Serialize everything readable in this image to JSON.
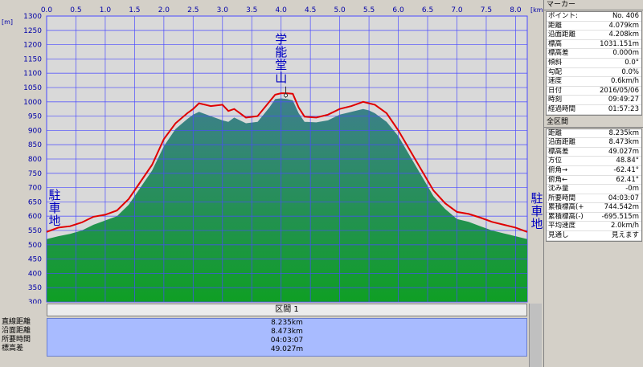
{
  "chart_data": {
    "type": "area",
    "xlabel": "km",
    "ylabel": "m",
    "xlim": [
      0,
      8.2
    ],
    "ylim": [
      300,
      1300
    ],
    "x_ticks": [
      "0.0",
      "0.5",
      "1.0",
      "1.5",
      "2.0",
      "2.5",
      "3.0",
      "3.5",
      "4.0",
      "4.5",
      "5.0",
      "5.5",
      "6.0",
      "6.5",
      "7.0",
      "7.5",
      "8.0"
    ],
    "y_ticks": [
      "1300",
      "1250",
      "1200",
      "1150",
      "1100",
      "1050",
      "1000",
      "950",
      "900",
      "850",
      "800",
      "750",
      "700",
      "650",
      "600",
      "550",
      "500",
      "450",
      "400",
      "350",
      "300"
    ],
    "grid": true,
    "annotations": {
      "start": "駐車地",
      "end": "駐車地",
      "peak": "学能堂山"
    },
    "series": [
      {
        "role": "route-elevation-line",
        "color": "#e00000",
        "x": [
          0,
          0.2,
          0.4,
          0.6,
          0.8,
          1.0,
          1.2,
          1.4,
          1.6,
          1.8,
          2.0,
          2.2,
          2.4,
          2.5,
          2.6,
          2.8,
          3.0,
          3.1,
          3.2,
          3.4,
          3.6,
          3.8,
          3.9,
          4.0,
          4.1,
          4.2,
          4.3,
          4.4,
          4.6,
          4.8,
          5.0,
          5.2,
          5.4,
          5.5,
          5.6,
          5.8,
          6.0,
          6.2,
          6.4,
          6.6,
          6.8,
          7.0,
          7.2,
          7.4,
          7.6,
          7.8,
          8.0,
          8.2
        ],
        "values": [
          545,
          560,
          565,
          578,
          598,
          605,
          620,
          660,
          720,
          780,
          870,
          925,
          960,
          975,
          995,
          985,
          990,
          968,
          975,
          945,
          950,
          1000,
          1025,
          1030,
          1030,
          1028,
          980,
          948,
          945,
          955,
          975,
          985,
          1000,
          995,
          990,
          960,
          900,
          830,
          760,
          690,
          645,
          615,
          608,
          595,
          580,
          570,
          560,
          545
        ]
      },
      {
        "role": "terrain-fill",
        "fill_top": "#3e7f8e",
        "fill_bottom": "#0f9f24",
        "x": [
          0,
          0.2,
          0.4,
          0.6,
          0.8,
          1.0,
          1.2,
          1.4,
          1.6,
          1.8,
          2.0,
          2.2,
          2.4,
          2.5,
          2.6,
          2.8,
          3.0,
          3.1,
          3.2,
          3.4,
          3.6,
          3.8,
          3.9,
          4.0,
          4.1,
          4.2,
          4.3,
          4.4,
          4.6,
          4.8,
          5.0,
          5.2,
          5.4,
          5.5,
          5.6,
          5.8,
          6.0,
          6.2,
          6.4,
          6.6,
          6.8,
          7.0,
          7.2,
          7.4,
          7.6,
          7.8,
          8.0,
          8.2
        ],
        "values": [
          520,
          530,
          538,
          550,
          570,
          585,
          600,
          640,
          700,
          760,
          845,
          905,
          940,
          955,
          965,
          950,
          935,
          930,
          945,
          925,
          930,
          980,
          1010,
          1012,
          1010,
          1005,
          960,
          930,
          928,
          935,
          955,
          965,
          975,
          970,
          960,
          930,
          880,
          810,
          740,
          670,
          625,
          590,
          580,
          565,
          550,
          540,
          530,
          520
        ]
      }
    ],
    "bottom_stats": {
      "section_header": "区間 1",
      "rows": [
        {
          "label": "直線距離",
          "value": "8.235km"
        },
        {
          "label": "沿面距離",
          "value": "8.473km"
        },
        {
          "label": "所要時間",
          "value": "04:03:07"
        },
        {
          "label": "標高差",
          "value": "49.027m"
        }
      ]
    }
  },
  "marker_panel": {
    "title": "マーカー",
    "rows": [
      {
        "k": "ポイント:",
        "v": "No. 406"
      },
      {
        "k": "距離",
        "v": "4.079km"
      },
      {
        "k": "沿面距離",
        "v": "4.208km"
      },
      {
        "k": "標高",
        "v": "1031.151m"
      },
      {
        "k": "標高差",
        "v": "0.000m"
      },
      {
        "k": "傾斜",
        "v": "0.0°"
      },
      {
        "k": "勾配",
        "v": "0.0%"
      },
      {
        "k": "速度",
        "v": "0.6km/h"
      },
      {
        "k": "日付",
        "v": "2016/05/06"
      },
      {
        "k": "時刻",
        "v": "09:49:27"
      },
      {
        "k": "経過時間",
        "v": "01:57:23"
      }
    ]
  },
  "section_panel": {
    "title": "全区間",
    "rows": [
      {
        "k": "距離",
        "v": "8.235km"
      },
      {
        "k": "沿面距離",
        "v": "8.473km"
      },
      {
        "k": "標高差",
        "v": "49.027m"
      },
      {
        "k": "方位",
        "v": "48.84°"
      },
      {
        "k": "俯角→",
        "v": "-62.41°"
      },
      {
        "k": "俯角←",
        "v": "62.41°"
      },
      {
        "k": "沈み量",
        "v": "-0m"
      },
      {
        "k": "所要時間",
        "v": "04:03:07"
      },
      {
        "k": "累積標高(+)",
        "v": "744.542m"
      },
      {
        "k": "累積標高(-)",
        "v": "-695.515m"
      },
      {
        "k": "平均速度",
        "v": "2.0km/h"
      },
      {
        "k": "見通し",
        "v": "見えます"
      }
    ]
  }
}
